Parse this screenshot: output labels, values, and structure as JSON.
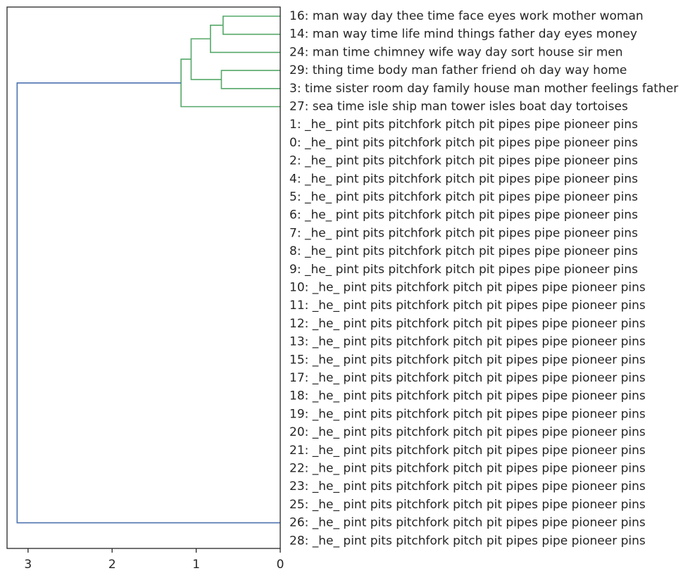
{
  "chart_data": {
    "type": "dendrogram",
    "orientation": "left",
    "xlim": [
      3.25,
      0
    ],
    "xticks": [
      3,
      2,
      1,
      0
    ],
    "xtick_labels": [
      "3",
      "2",
      "1",
      "0"
    ],
    "colors": {
      "cluster_1": "#55a868",
      "above_threshold": "#4c72b0",
      "axes": "#262626"
    },
    "leaves": [
      {
        "id": 16,
        "label": "16: man way day thee time face eyes work mother woman"
      },
      {
        "id": 14,
        "label": "14: man way time life mind things father day eyes money"
      },
      {
        "id": 24,
        "label": "24: man time chimney wife way day sort house sir men"
      },
      {
        "id": 29,
        "label": "29: thing time body man father friend oh day way home"
      },
      {
        "id": 3,
        "label": "3: time sister room day family house man mother feelings father"
      },
      {
        "id": 27,
        "label": "27: sea time isle ship man tower isles boat day tortoises"
      },
      {
        "id": 1,
        "label": "1: _he_ pint pits pitchfork pitch pit pipes pipe pioneer pins"
      },
      {
        "id": 0,
        "label": "0: _he_ pint pits pitchfork pitch pit pipes pipe pioneer pins"
      },
      {
        "id": 2,
        "label": "2: _he_ pint pits pitchfork pitch pit pipes pipe pioneer pins"
      },
      {
        "id": 4,
        "label": "4: _he_ pint pits pitchfork pitch pit pipes pipe pioneer pins"
      },
      {
        "id": 5,
        "label": "5: _he_ pint pits pitchfork pitch pit pipes pipe pioneer pins"
      },
      {
        "id": 6,
        "label": "6: _he_ pint pits pitchfork pitch pit pipes pipe pioneer pins"
      },
      {
        "id": 7,
        "label": "7: _he_ pint pits pitchfork pitch pit pipes pipe pioneer pins"
      },
      {
        "id": 8,
        "label": "8: _he_ pint pits pitchfork pitch pit pipes pipe pioneer pins"
      },
      {
        "id": 9,
        "label": "9: _he_ pint pits pitchfork pitch pit pipes pipe pioneer pins"
      },
      {
        "id": 10,
        "label": "10: _he_ pint pits pitchfork pitch pit pipes pipe pioneer pins"
      },
      {
        "id": 11,
        "label": "11: _he_ pint pits pitchfork pitch pit pipes pipe pioneer pins"
      },
      {
        "id": 12,
        "label": "12: _he_ pint pits pitchfork pitch pit pipes pipe pioneer pins"
      },
      {
        "id": 13,
        "label": "13: _he_ pint pits pitchfork pitch pit pipes pipe pioneer pins"
      },
      {
        "id": 15,
        "label": "15: _he_ pint pits pitchfork pitch pit pipes pipe pioneer pins"
      },
      {
        "id": 17,
        "label": "17: _he_ pint pits pitchfork pitch pit pipes pipe pioneer pins"
      },
      {
        "id": 18,
        "label": "18: _he_ pint pits pitchfork pitch pit pipes pipe pioneer pins"
      },
      {
        "id": 19,
        "label": "19: _he_ pint pits pitchfork pitch pit pipes pipe pioneer pins"
      },
      {
        "id": 20,
        "label": "20: _he_ pint pits pitchfork pitch pit pipes pipe pioneer pins"
      },
      {
        "id": 21,
        "label": "21: _he_ pint pits pitchfork pitch pit pipes pipe pioneer pins"
      },
      {
        "id": 22,
        "label": "22: _he_ pint pits pitchfork pitch pit pipes pipe pioneer pins"
      },
      {
        "id": 23,
        "label": "23: _he_ pint pits pitchfork pitch pit pipes pipe pioneer pins"
      },
      {
        "id": 25,
        "label": "25: _he_ pint pits pitchfork pitch pit pipes pipe pioneer pins"
      },
      {
        "id": 26,
        "label": "26: _he_ pint pits pitchfork pitch pit pipes pipe pioneer pins"
      },
      {
        "id": 28,
        "label": "28: _he_ pint pits pitchfork pitch pit pipes pipe pioneer pins"
      }
    ],
    "links": [
      {
        "children": [
          16,
          14
        ],
        "child_heights": [
          0,
          0
        ],
        "height": 0.68,
        "color": "cluster_1"
      },
      {
        "children": [
          "16+14",
          24
        ],
        "child_heights": [
          0.68,
          0
        ],
        "height": 0.83,
        "color": "cluster_1"
      },
      {
        "children": [
          29,
          3
        ],
        "child_heights": [
          0,
          0
        ],
        "height": 0.7,
        "color": "cluster_1"
      },
      {
        "children": [
          "16+14+24",
          "29+3"
        ],
        "child_heights": [
          0.83,
          0.7
        ],
        "height": 1.06,
        "color": "cluster_1"
      },
      {
        "children": [
          "16+14+24+29+3",
          27
        ],
        "child_heights": [
          1.06,
          0
        ],
        "height": 1.18,
        "color": "cluster_1"
      },
      {
        "children": [
          "topic_cluster",
          26
        ],
        "child_heights": [
          1.18,
          0
        ],
        "height": 3.13,
        "color": "above_threshold"
      }
    ]
  }
}
